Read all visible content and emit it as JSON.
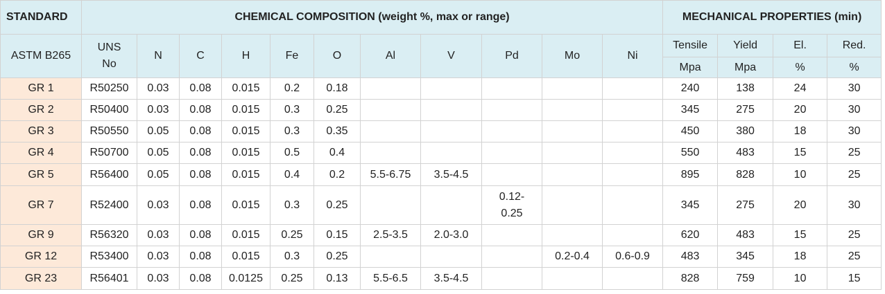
{
  "table": {
    "header": {
      "standard": "STANDARD",
      "chemical": "CHEMICAL COMPOSITION (weight %, max or range)",
      "mechanical": "MECHANICAL PROPERTIES (min)"
    },
    "columns": {
      "standard": "ASTM B265",
      "uns": "UNS No",
      "elements": [
        "N",
        "C",
        "H",
        "Fe",
        "O",
        "Al",
        "V",
        "Pd",
        "Mo",
        "Ni"
      ],
      "mechanical": [
        {
          "name": "Tensile",
          "unit": "Mpa"
        },
        {
          "name": "Yield",
          "unit": "Mpa"
        },
        {
          "name": "El.",
          "unit": "%"
        },
        {
          "name": "Red.",
          "unit": "%"
        }
      ]
    },
    "rows": [
      [
        "GR 1",
        "R50250",
        "0.03",
        "0.08",
        "0.015",
        "0.2",
        "0.18",
        null,
        null,
        null,
        null,
        null,
        "240",
        "138",
        "24",
        "30"
      ],
      [
        "GR 2",
        "R50400",
        "0.03",
        "0.08",
        "0.015",
        "0.3",
        "0.25",
        null,
        null,
        null,
        null,
        null,
        "345",
        "275",
        "20",
        "30"
      ],
      [
        "GR 3",
        "R50550",
        "0.05",
        "0.08",
        "0.015",
        "0.3",
        "0.35",
        null,
        null,
        null,
        null,
        null,
        "450",
        "380",
        "18",
        "30"
      ],
      [
        "GR 4",
        "R50700",
        "0.05",
        "0.08",
        "0.015",
        "0.5",
        "0.4",
        null,
        null,
        null,
        null,
        null,
        "550",
        "483",
        "15",
        "25"
      ],
      [
        "GR 5",
        "R56400",
        "0.05",
        "0.08",
        "0.015",
        "0.4",
        "0.2",
        "5.5-6.75",
        "3.5-4.5",
        null,
        null,
        null,
        "895",
        "828",
        "10",
        "25"
      ],
      [
        "GR 7",
        "R52400",
        "0.03",
        "0.08",
        "0.015",
        "0.3",
        "0.25",
        null,
        null,
        "0.12-0.25",
        null,
        null,
        "345",
        "275",
        "20",
        "30"
      ],
      [
        "GR 9",
        "R56320",
        "0.03",
        "0.08",
        "0.015",
        "0.25",
        "0.15",
        "2.5-3.5",
        "2.0-3.0",
        null,
        null,
        null,
        "620",
        "483",
        "15",
        "25"
      ],
      [
        "GR 12",
        "R53400",
        "0.03",
        "0.08",
        "0.015",
        "0.3",
        "0.25",
        null,
        null,
        null,
        "0.2-0.4",
        "0.6-0.9",
        "483",
        "345",
        "18",
        "25"
      ],
      [
        "GR 23",
        "R56401",
        "0.03",
        "0.08",
        "0.0125",
        "0.25",
        "0.13",
        "5.5-6.5",
        "3.5-4.5",
        null,
        null,
        null,
        "828",
        "759",
        "10",
        "15"
      ]
    ]
  }
}
